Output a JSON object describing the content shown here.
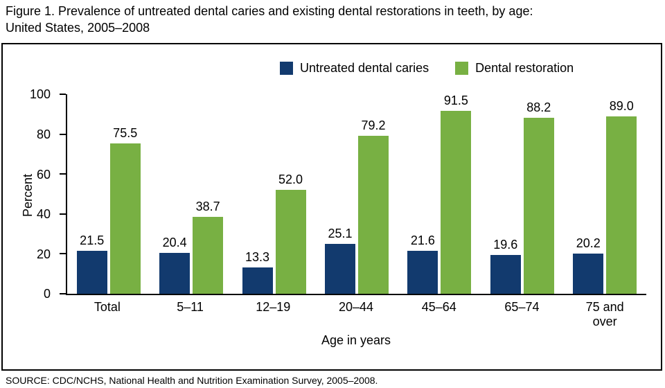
{
  "title": "Figure 1. Prevalence of untreated dental caries and existing dental restorations in teeth, by age:\nUnited States, 2005–2008",
  "source": "SOURCE: CDC/NCHS, National Health and Nutrition Examination Survey, 2005–2008.",
  "chart_data": {
    "type": "bar",
    "categories": [
      "Total",
      "5–11",
      "12–19",
      "20–44",
      "45–64",
      "65–74",
      "75 and over"
    ],
    "series": [
      {
        "name": "Untreated dental caries",
        "color": "#123a6e",
        "values": [
          21.5,
          20.4,
          13.3,
          25.1,
          21.6,
          19.6,
          20.2
        ]
      },
      {
        "name": "Dental restoration",
        "color": "#78b043",
        "values": [
          75.5,
          38.7,
          52.0,
          79.2,
          91.5,
          88.2,
          89.0
        ]
      }
    ],
    "title": "Figure 1. Prevalence of untreated dental caries and existing dental restorations in teeth, by age: United States, 2005–2008",
    "xlabel": "Age in years",
    "ylabel": "Percent",
    "ylim": [
      0,
      100
    ],
    "yticks": [
      0,
      20,
      40,
      60,
      80,
      100
    ],
    "grid": false,
    "legend_position": "top",
    "value_labels": true,
    "axis_color": "#000000",
    "border_color": "#000000"
  }
}
